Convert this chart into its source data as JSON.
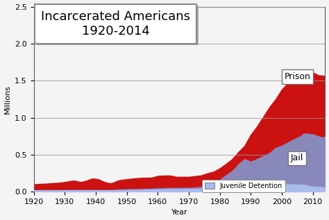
{
  "title_line1": "Incarcerated Americans",
  "title_line2": "1920-2014",
  "xlabel": "Year",
  "ylabel": "Millions",
  "xlim": [
    1920,
    2014
  ],
  "ylim": [
    0,
    2.5
  ],
  "yticks": [
    0.0,
    0.5,
    1.0,
    1.5,
    2.0,
    2.5
  ],
  "xticks": [
    1920,
    1930,
    1940,
    1950,
    1960,
    1970,
    1980,
    1990,
    2000,
    2010
  ],
  "years": [
    1920,
    1922,
    1924,
    1926,
    1928,
    1930,
    1932,
    1933,
    1934,
    1935,
    1936,
    1937,
    1938,
    1939,
    1940,
    1941,
    1942,
    1943,
    1944,
    1945,
    1946,
    1947,
    1948,
    1950,
    1952,
    1954,
    1956,
    1958,
    1960,
    1962,
    1964,
    1966,
    1968,
    1970,
    1972,
    1974,
    1976,
    1978,
    1980,
    1982,
    1984,
    1985,
    1986,
    1988,
    1990,
    1992,
    1994,
    1996,
    1998,
    2000,
    2002,
    2004,
    2006,
    2007,
    2008,
    2009,
    2010,
    2011,
    2012,
    2013,
    2014
  ],
  "prison": [
    0.098,
    0.105,
    0.108,
    0.115,
    0.12,
    0.13,
    0.145,
    0.15,
    0.14,
    0.13,
    0.138,
    0.148,
    0.165,
    0.178,
    0.173,
    0.165,
    0.145,
    0.128,
    0.118,
    0.113,
    0.13,
    0.148,
    0.158,
    0.168,
    0.178,
    0.185,
    0.188,
    0.19,
    0.213,
    0.218,
    0.218,
    0.2,
    0.2,
    0.2,
    0.21,
    0.22,
    0.248,
    0.27,
    0.315,
    0.375,
    0.44,
    0.487,
    0.535,
    0.62,
    0.77,
    0.88,
    1.01,
    1.14,
    1.25,
    1.38,
    1.47,
    1.5,
    1.568,
    1.6,
    1.61,
    1.62,
    1.61,
    1.59,
    1.57,
    1.57,
    1.561
  ],
  "jail": [
    0.02,
    0.02,
    0.02,
    0.02,
    0.02,
    0.022,
    0.022,
    0.022,
    0.022,
    0.022,
    0.022,
    0.022,
    0.022,
    0.022,
    0.022,
    0.022,
    0.022,
    0.022,
    0.022,
    0.022,
    0.025,
    0.028,
    0.03,
    0.033,
    0.035,
    0.035,
    0.038,
    0.04,
    0.045,
    0.048,
    0.05,
    0.05,
    0.052,
    0.052,
    0.055,
    0.065,
    0.075,
    0.09,
    0.16,
    0.22,
    0.28,
    0.32,
    0.37,
    0.44,
    0.405,
    0.44,
    0.48,
    0.52,
    0.59,
    0.62,
    0.665,
    0.71,
    0.748,
    0.78,
    0.785,
    0.776,
    0.776,
    0.76,
    0.745,
    0.731,
    0.744
  ],
  "juvenile": [
    0.018,
    0.018,
    0.018,
    0.018,
    0.018,
    0.018,
    0.018,
    0.018,
    0.018,
    0.018,
    0.018,
    0.018,
    0.018,
    0.018,
    0.018,
    0.018,
    0.018,
    0.018,
    0.018,
    0.018,
    0.018,
    0.018,
    0.018,
    0.02,
    0.022,
    0.024,
    0.028,
    0.03,
    0.03,
    0.032,
    0.034,
    0.034,
    0.036,
    0.036,
    0.038,
    0.04,
    0.044,
    0.046,
    0.05,
    0.055,
    0.06,
    0.063,
    0.065,
    0.068,
    0.07,
    0.073,
    0.08,
    0.09,
    0.093,
    0.1,
    0.1,
    0.096,
    0.093,
    0.092,
    0.085,
    0.075,
    0.07,
    0.068,
    0.065,
    0.062,
    0.06
  ],
  "prison_color": "#cc1111",
  "jail_color": "#8888bb",
  "juvenile_color": "#aabbee",
  "bg_color": "#f4f4f4",
  "grid_color": "#999999",
  "title1_fontsize": 13,
  "title2_fontsize": 11,
  "label_fontsize": 8,
  "annotation_fontsize": 9
}
